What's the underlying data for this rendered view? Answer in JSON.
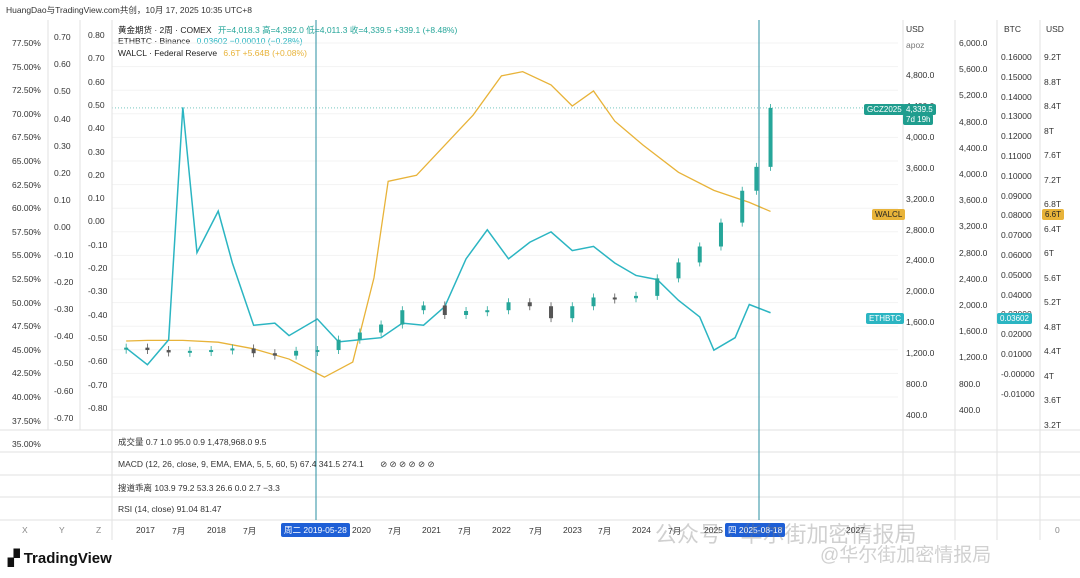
{
  "header": {
    "author_line": "HuangDao与TradingView.com共创，10月 17, 2025 10:35 UTC+8"
  },
  "legend": [
    {
      "name": "黄金期货 · 2周 · COMEX",
      "values": "开=4,018.3  高=4,392.0  低=4,011.3  收=4,339.5  +339.1 (+8.48%)",
      "color": "#26a69a"
    },
    {
      "name": "ETHBTC · Binance",
      "values": "0.03602  −0.00010 (−0.28%)",
      "color": "#26b4c0"
    },
    {
      "name": "WALCL · Federal Reserve",
      "values": "6.6T  +5.64B (+0.08%)",
      "color": "#e8b339"
    }
  ],
  "indicators": [
    {
      "label": "成交量  0.7  1.0  95.0  0.9  1,478,968.0  9.5",
      "extra": ""
    },
    {
      "label": "MACD (12, 26, close, 9, EMA, EMA, 5, 5, 60, 5)  67.4  341.5  274.1",
      "extra": "⊘   ⊘ ⊘ ⊘ ⊘ ⊘"
    },
    {
      "label": "搜道乖离  103.9  79.2  53.3  26.6  0.0  2.7  −3.3",
      "extra": ""
    },
    {
      "label": "RSI (14, close)  91.04  81.47",
      "extra": ""
    }
  ],
  "axes": {
    "pct": [
      "77.50%",
      "75.00%",
      "72.50%",
      "70.00%",
      "67.50%",
      "65.00%",
      "62.50%",
      "60.00%",
      "57.50%",
      "55.00%",
      "52.50%",
      "50.00%",
      "47.50%",
      "45.00%",
      "42.50%",
      "40.00%",
      "37.50%",
      "35.00%"
    ],
    "a2": [
      "0.70",
      "0.60",
      "0.50",
      "0.40",
      "0.30",
      "0.20",
      "0.10",
      "0.00",
      "-0.10",
      "-0.20",
      "-0.30",
      "-0.40",
      "-0.50",
      "-0.60",
      "-0.70"
    ],
    "a3": [
      "0.80",
      "0.70",
      "0.60",
      "0.50",
      "0.40",
      "0.30",
      "0.20",
      "0.10",
      "0.00",
      "-0.10",
      "-0.20",
      "-0.30",
      "-0.40",
      "-0.50",
      "-0.60",
      "-0.70",
      "-0.80"
    ],
    "usd_head": "USD",
    "usd_sub": "apoz",
    "usd_inner": [
      "4,800.0",
      "4,400.0",
      "4,000.0",
      "3,600.0",
      "3,200.0",
      "2,800.0",
      "2,400.0",
      "2,000.0",
      "1,600.0",
      "1,200.0",
      "800.0",
      "400.0"
    ],
    "usd_outer": [
      "6,000.0",
      "5,600.0",
      "5,200.0",
      "4,800.0",
      "4,400.0",
      "4,000.0",
      "3,600.0",
      "3,200.0",
      "2,800.0",
      "2,400.0",
      "2,000.0",
      "1,600.0",
      "1,200.0",
      "800.0",
      "400.0"
    ],
    "btc_head": "BTC",
    "btc": [
      "0.16000",
      "0.15000",
      "0.14000",
      "0.13000",
      "0.12000",
      "0.11000",
      "0.10000",
      "0.09000",
      "0.08000",
      "0.07000",
      "0.06000",
      "0.05000",
      "0.04000",
      "0.03000",
      "0.02000",
      "0.01000",
      "-0.00000",
      "-0.01000"
    ],
    "usd2_head": "USD",
    "usdT": [
      "9.2T",
      "8.8T",
      "8.4T",
      "8T",
      "7.6T",
      "7.2T",
      "6.8T",
      "6.4T",
      "6T",
      "5.6T",
      "5.2T",
      "4.8T",
      "4.4T",
      "4T",
      "3.6T",
      "3.2T"
    ],
    "x_labels": [
      "2017",
      "7月",
      "2018",
      "7月",
      "2020",
      "7月",
      "2021",
      "7月",
      "2022",
      "7月",
      "2023",
      "7月",
      "2024",
      "7月",
      "2025",
      "2027"
    ],
    "x_left": [
      "X",
      "Y",
      "Z"
    ],
    "x_right": "0"
  },
  "tags": {
    "gold_name": "GCZ2025",
    "gold_price": "4,339.5",
    "gold_time": "7d 19h",
    "walcl_name": "WALCL",
    "walcl_value": "6.6T",
    "eth_name": "ETHBTC",
    "eth_value": "0.03602",
    "cursor1": "周二 2019-05-28",
    "cursor2": "四 2025-08-18"
  },
  "branding": {
    "logo": "TradingView",
    "watermark1": "公众号 · 华尔街加密情报局",
    "watermark2": "@华尔街加密情报局"
  },
  "colors": {
    "gold": "#26a69a",
    "goldDown": "#555555",
    "eth": "#2bb5c2",
    "walcl": "#e8b339",
    "cursor": "#1e5fd6"
  },
  "chart_data": {
    "type": "line",
    "title": "",
    "series": [
      {
        "name": "黄金期货 · 2周 · COMEX",
        "unit": "USD",
        "x": [
          2016.7,
          2017.0,
          2017.3,
          2017.6,
          2017.9,
          2018.2,
          2018.5,
          2018.8,
          2019.1,
          2019.4,
          2019.7,
          2020.0,
          2020.3,
          2020.6,
          2020.9,
          2021.2,
          2021.5,
          2021.8,
          2022.1,
          2022.4,
          2022.7,
          2023.0,
          2023.3,
          2023.6,
          2023.9,
          2024.2,
          2024.5,
          2024.8,
          2025.1,
          2025.4,
          2025.6,
          2025.8
        ],
        "values": [
          1330,
          1300,
          1270,
          1290,
          1300,
          1320,
          1260,
          1230,
          1290,
          1300,
          1430,
          1520,
          1620,
          1800,
          1860,
          1740,
          1790,
          1800,
          1900,
          1850,
          1700,
          1850,
          1960,
          1950,
          1980,
          2200,
          2400,
          2600,
          2900,
          3300,
          3600,
          4339.5
        ]
      },
      {
        "name": "ETHBTC · Binance",
        "unit": "BTC",
        "x": [
          2016.7,
          2017.0,
          2017.3,
          2017.5,
          2017.7,
          2018.0,
          2018.2,
          2018.5,
          2018.8,
          2019.0,
          2019.4,
          2019.7,
          2020.0,
          2020.3,
          2020.6,
          2020.9,
          2021.2,
          2021.5,
          2021.8,
          2022.1,
          2022.4,
          2022.7,
          2023.0,
          2023.3,
          2023.6,
          2023.9,
          2024.2,
          2024.5,
          2024.8,
          2025.0,
          2025.3,
          2025.5,
          2025.8
        ],
        "values": [
          0.019,
          0.011,
          0.023,
          0.135,
          0.065,
          0.085,
          0.06,
          0.03,
          0.031,
          0.025,
          0.033,
          0.022,
          0.023,
          0.024,
          0.031,
          0.03,
          0.039,
          0.062,
          0.076,
          0.062,
          0.07,
          0.075,
          0.066,
          0.068,
          0.06,
          0.054,
          0.052,
          0.042,
          0.034,
          0.018,
          0.024,
          0.04,
          0.03602
        ]
      },
      {
        "name": "WALCL · Federal Reserve",
        "unit": "USD",
        "x": [
          2016.7,
          2017.0,
          2017.5,
          2018.0,
          2018.5,
          2019.0,
          2019.5,
          2019.9,
          2020.2,
          2020.4,
          2020.8,
          2021.2,
          2021.6,
          2022.0,
          2022.3,
          2022.7,
          2023.0,
          2023.3,
          2023.6,
          2024.0,
          2024.5,
          2025.0,
          2025.5,
          2025.8
        ],
        "values": [
          4.45,
          4.46,
          4.46,
          4.43,
          4.32,
          4.15,
          3.85,
          4.1,
          5.5,
          7.1,
          7.2,
          7.7,
          8.2,
          8.85,
          8.92,
          8.7,
          8.35,
          8.6,
          8.1,
          7.7,
          7.25,
          6.95,
          6.75,
          6.6
        ]
      }
    ]
  }
}
